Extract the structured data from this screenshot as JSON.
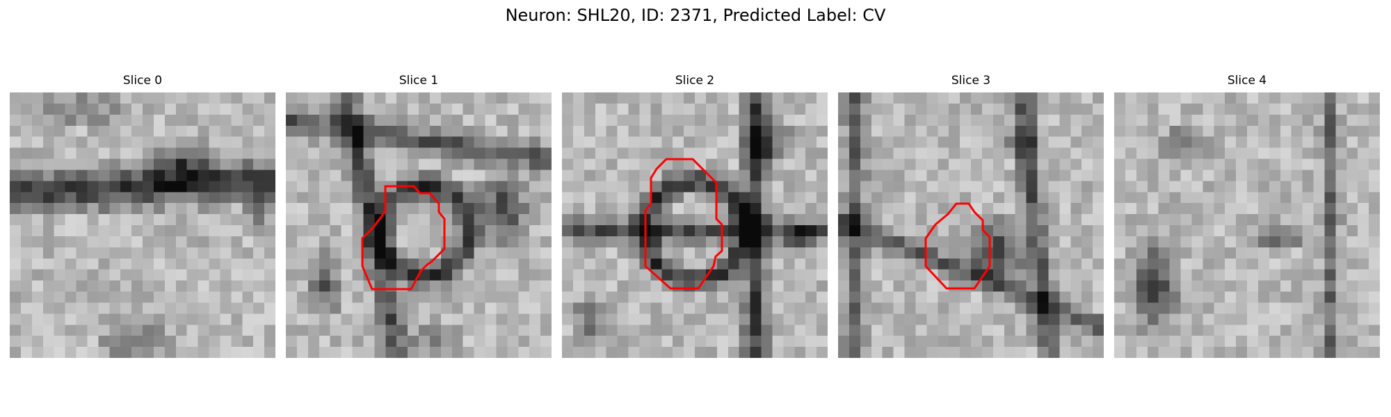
{
  "title": "Neuron: SHL20, ID: 2371, Predicted Label: CV",
  "panels": [
    {
      "label": "Slice 0",
      "has_outline": false,
      "image": "slice-0-micrograph"
    },
    {
      "label": "Slice 1",
      "has_outline": true,
      "image": "slice-1-micrograph"
    },
    {
      "label": "Slice 2",
      "has_outline": true,
      "image": "slice-2-micrograph"
    },
    {
      "label": "Slice 3",
      "has_outline": true,
      "image": "slice-3-micrograph"
    },
    {
      "label": "Slice 4",
      "has_outline": false,
      "image": "slice-4-micrograph"
    }
  ],
  "colors": {
    "outline": "#ff0000"
  }
}
